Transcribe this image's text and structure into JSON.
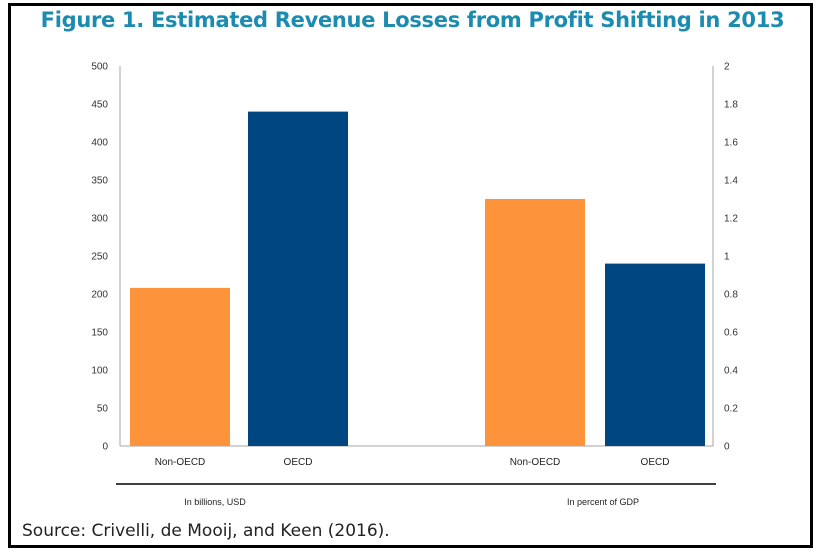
{
  "title": "Figure 1. Estimated Revenue Losses from Profit Shifting in 2013",
  "source": "Source: Crivelli, de Mooij, and Keen (2016).",
  "colors": {
    "title": "#1b8bb0",
    "non_oecd": "#fd943b",
    "oecd": "#004781",
    "axis": "#a6a6a6"
  },
  "chart_data": [
    {
      "type": "bar",
      "title": "Figure 1. Estimated Revenue Losses from Profit Shifting in 2013",
      "group_label": "In billions, USD",
      "axis": "left",
      "categories": [
        "Non-OECD",
        "OECD"
      ],
      "values": [
        208,
        440
      ],
      "ylim": [
        0,
        500
      ],
      "yticks": [
        "0",
        "50",
        "100",
        "150",
        "200",
        "250",
        "300",
        "350",
        "400",
        "450",
        "500"
      ],
      "xlabel": "",
      "ylabel": "",
      "grid": false
    },
    {
      "type": "bar",
      "group_label": "In percent of GDP",
      "axis": "right",
      "categories": [
        "Non-OECD",
        "OECD"
      ],
      "values": [
        1.3,
        0.96
      ],
      "ylim": [
        0,
        2
      ],
      "yticks": [
        "0",
        "0.2",
        "0.4",
        "0.6",
        "0.8",
        "1",
        "1.2",
        "1.4",
        "1.6",
        "1.8",
        "2"
      ],
      "xlabel": "",
      "ylabel": "",
      "grid": false
    }
  ]
}
